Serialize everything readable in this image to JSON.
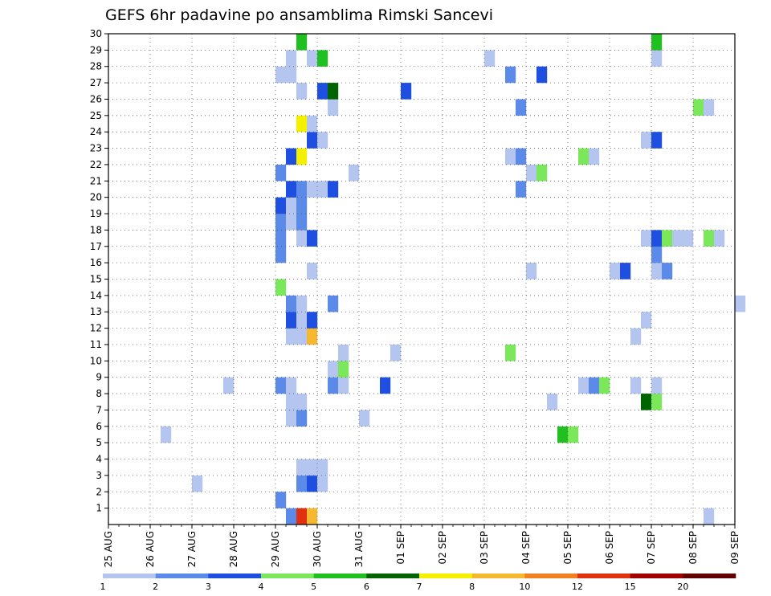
{
  "chart_data": {
    "type": "heatmap",
    "title": "GEFS 6hr padavine po ansamblima Rimski Sancevi",
    "xlabel": "",
    "ylabel": "",
    "x_range": [
      "2025-08-25 00Z",
      "2025-09-09 00Z"
    ],
    "x_tick_labels": [
      "25 AUG",
      "26 AUG",
      "27 AUG",
      "28 AUG",
      "29 AUG",
      "30 AUG",
      "31 AUG",
      "01 SEP",
      "02 SEP",
      "03 SEP",
      "04 SEP",
      "05 SEP",
      "06 SEP",
      "07 SEP",
      "08 SEP",
      "09 SEP"
    ],
    "y_range": [
      0,
      30
    ],
    "y_tick_labels": [
      1,
      2,
      3,
      4,
      5,
      6,
      7,
      8,
      9,
      10,
      11,
      12,
      13,
      14,
      15,
      16,
      17,
      18,
      19,
      20,
      21,
      22,
      23,
      24,
      25,
      26,
      27,
      28,
      29,
      30
    ],
    "grid": true,
    "colorbar": {
      "levels": [
        1,
        2,
        3,
        4,
        5,
        6,
        7,
        8,
        10,
        12,
        15,
        20
      ],
      "tick_labels": [
        "1",
        "2",
        "3",
        "4",
        "5",
        "6",
        "7",
        "8",
        "10",
        "12",
        "15",
        "20"
      ],
      "colors": [
        "#b4c6f0",
        "#5b8ae8",
        "#1f4fe0",
        "#7ae85a",
        "#20c020",
        "#006400",
        "#f5f000",
        "#f5b830",
        "#f08020",
        "#e03010",
        "#a00000",
        "#600000"
      ]
    },
    "cells": [
      {
        "x": "29 AUG 06Z",
        "member": 0,
        "color": "#5b8ae8"
      },
      {
        "x": "29 AUG 12Z",
        "member": 0,
        "color": "#e03010"
      },
      {
        "x": "29 AUG 18Z",
        "member": 0,
        "color": "#f5b830"
      },
      {
        "x": "08 SEP 06Z",
        "member": 0,
        "color": "#b4c6f0"
      },
      {
        "x": "29 AUG 00Z",
        "member": 1,
        "color": "#5b8ae8"
      },
      {
        "x": "27 AUG 00Z",
        "member": 2,
        "color": "#b4c6f0"
      },
      {
        "x": "29 AUG 12Z",
        "member": 2,
        "color": "#5b8ae8"
      },
      {
        "x": "29 AUG 18Z",
        "member": 2,
        "color": "#1f4fe0"
      },
      {
        "x": "30 AUG 00Z",
        "member": 2,
        "color": "#b4c6f0"
      },
      {
        "x": "29 AUG 12Z",
        "member": 3,
        "color": "#b4c6f0"
      },
      {
        "x": "29 AUG 18Z",
        "member": 3,
        "color": "#b4c6f0"
      },
      {
        "x": "30 AUG 00Z",
        "member": 3,
        "color": "#b4c6f0"
      },
      {
        "x": "26 AUG 06Z",
        "member": 5,
        "color": "#b4c6f0"
      },
      {
        "x": "04 SEP 18Z",
        "member": 5,
        "color": "#20c020"
      },
      {
        "x": "05 SEP 00Z",
        "member": 5,
        "color": "#7ae85a"
      },
      {
        "x": "29 AUG 06Z",
        "member": 6,
        "color": "#b4c6f0"
      },
      {
        "x": "29 AUG 12Z",
        "member": 6,
        "color": "#5b8ae8"
      },
      {
        "x": "31 AUG 00Z",
        "member": 6,
        "color": "#b4c6f0"
      },
      {
        "x": "29 AUG 06Z",
        "member": 7,
        "color": "#b4c6f0"
      },
      {
        "x": "29 AUG 12Z",
        "member": 7,
        "color": "#b4c6f0"
      },
      {
        "x": "04 SEP 12Z",
        "member": 7,
        "color": "#b4c6f0"
      },
      {
        "x": "06 SEP 18Z",
        "member": 7,
        "color": "#006400"
      },
      {
        "x": "07 SEP 00Z",
        "member": 7,
        "color": "#7ae85a"
      },
      {
        "x": "27 AUG 18Z",
        "member": 8,
        "color": "#b4c6f0"
      },
      {
        "x": "29 AUG 00Z",
        "member": 8,
        "color": "#5b8ae8"
      },
      {
        "x": "29 AUG 06Z",
        "member": 8,
        "color": "#b4c6f0"
      },
      {
        "x": "30 AUG 06Z",
        "member": 8,
        "color": "#5b8ae8"
      },
      {
        "x": "30 AUG 12Z",
        "member": 8,
        "color": "#b4c6f0"
      },
      {
        "x": "31 AUG 12Z",
        "member": 8,
        "color": "#1f4fe0"
      },
      {
        "x": "05 SEP 06Z",
        "member": 8,
        "color": "#b4c6f0"
      },
      {
        "x": "05 SEP 12Z",
        "member": 8,
        "color": "#5b8ae8"
      },
      {
        "x": "05 SEP 18Z",
        "member": 8,
        "color": "#7ae85a"
      },
      {
        "x": "06 SEP 12Z",
        "member": 8,
        "color": "#b4c6f0"
      },
      {
        "x": "07 SEP 00Z",
        "member": 8,
        "color": "#b4c6f0"
      },
      {
        "x": "30 AUG 06Z",
        "member": 9,
        "color": "#b4c6f0"
      },
      {
        "x": "30 AUG 12Z",
        "member": 9,
        "color": "#7ae85a"
      },
      {
        "x": "30 AUG 12Z",
        "member": 10,
        "color": "#b4c6f0"
      },
      {
        "x": "31 AUG 18Z",
        "member": 10,
        "color": "#b4c6f0"
      },
      {
        "x": "03 SEP 12Z",
        "member": 10,
        "color": "#7ae85a"
      },
      {
        "x": "29 AUG 06Z",
        "member": 11,
        "color": "#b4c6f0"
      },
      {
        "x": "29 AUG 12Z",
        "member": 11,
        "color": "#b4c6f0"
      },
      {
        "x": "29 AUG 18Z",
        "member": 11,
        "color": "#f5b830"
      },
      {
        "x": "06 SEP 12Z",
        "member": 11,
        "color": "#b4c6f0"
      },
      {
        "x": "29 AUG 06Z",
        "member": 12,
        "color": "#1f4fe0"
      },
      {
        "x": "29 AUG 12Z",
        "member": 12,
        "color": "#b4c6f0"
      },
      {
        "x": "29 AUG 18Z",
        "member": 12,
        "color": "#1f4fe0"
      },
      {
        "x": "06 SEP 18Z",
        "member": 12,
        "color": "#b4c6f0"
      },
      {
        "x": "29 AUG 06Z",
        "member": 13,
        "color": "#5b8ae8"
      },
      {
        "x": "29 AUG 12Z",
        "member": 13,
        "color": "#b4c6f0"
      },
      {
        "x": "30 AUG 06Z",
        "member": 13,
        "color": "#5b8ae8"
      },
      {
        "x": "09 SEP 00Z",
        "member": 13,
        "color": "#b4c6f0"
      },
      {
        "x": "29 AUG 00Z",
        "member": 14,
        "color": "#7ae85a"
      },
      {
        "x": "29 AUG 18Z",
        "member": 15,
        "color": "#b4c6f0"
      },
      {
        "x": "04 SEP 00Z",
        "member": 15,
        "color": "#b4c6f0"
      },
      {
        "x": "06 SEP 00Z",
        "member": 15,
        "color": "#b4c6f0"
      },
      {
        "x": "06 SEP 06Z",
        "member": 15,
        "color": "#1f4fe0"
      },
      {
        "x": "07 SEP 00Z",
        "member": 15,
        "color": "#b4c6f0"
      },
      {
        "x": "07 SEP 06Z",
        "member": 15,
        "color": "#5b8ae8"
      },
      {
        "x": "29 AUG 00Z",
        "member": 16,
        "color": "#5b8ae8"
      },
      {
        "x": "07 SEP 00Z",
        "member": 16,
        "color": "#5b8ae8"
      },
      {
        "x": "29 AUG 00Z",
        "member": 17,
        "color": "#5b8ae8"
      },
      {
        "x": "29 AUG 12Z",
        "member": 17,
        "color": "#b4c6f0"
      },
      {
        "x": "29 AUG 18Z",
        "member": 17,
        "color": "#1f4fe0"
      },
      {
        "x": "06 SEP 18Z",
        "member": 17,
        "color": "#b4c6f0"
      },
      {
        "x": "07 SEP 00Z",
        "member": 17,
        "color": "#1f4fe0"
      },
      {
        "x": "07 SEP 06Z",
        "member": 17,
        "color": "#7ae85a"
      },
      {
        "x": "07 SEP 12Z",
        "member": 17,
        "color": "#b4c6f0"
      },
      {
        "x": "07 SEP 18Z",
        "member": 17,
        "color": "#b4c6f0"
      },
      {
        "x": "08 SEP 06Z",
        "member": 17,
        "color": "#7ae85a"
      },
      {
        "x": "08 SEP 12Z",
        "member": 17,
        "color": "#b4c6f0"
      },
      {
        "x": "29 AUG 00Z",
        "member": 18,
        "color": "#5b8ae8"
      },
      {
        "x": "29 AUG 06Z",
        "member": 18,
        "color": "#b4c6f0"
      },
      {
        "x": "29 AUG 12Z",
        "member": 18,
        "color": "#5b8ae8"
      },
      {
        "x": "29 AUG 00Z",
        "member": 19,
        "color": "#1f4fe0"
      },
      {
        "x": "29 AUG 06Z",
        "member": 19,
        "color": "#b4c6f0"
      },
      {
        "x": "29 AUG 12Z",
        "member": 19,
        "color": "#5b8ae8"
      },
      {
        "x": "29 AUG 06Z",
        "member": 20,
        "color": "#1f4fe0"
      },
      {
        "x": "29 AUG 12Z",
        "member": 20,
        "color": "#5b8ae8"
      },
      {
        "x": "29 AUG 18Z",
        "member": 20,
        "color": "#b4c6f0"
      },
      {
        "x": "30 AUG 00Z",
        "member": 20,
        "color": "#b4c6f0"
      },
      {
        "x": "30 AUG 06Z",
        "member": 20,
        "color": "#1f4fe0"
      },
      {
        "x": "03 SEP 18Z",
        "member": 20,
        "color": "#5b8ae8"
      },
      {
        "x": "29 AUG 00Z",
        "member": 21,
        "color": "#5b8ae8"
      },
      {
        "x": "30 AUG 18Z",
        "member": 21,
        "color": "#b4c6f0"
      },
      {
        "x": "04 SEP 00Z",
        "member": 21,
        "color": "#b4c6f0"
      },
      {
        "x": "04 SEP 06Z",
        "member": 21,
        "color": "#7ae85a"
      },
      {
        "x": "29 AUG 06Z",
        "member": 22,
        "color": "#1f4fe0"
      },
      {
        "x": "29 AUG 12Z",
        "member": 22,
        "color": "#f5f000"
      },
      {
        "x": "03 SEP 12Z",
        "member": 22,
        "color": "#b4c6f0"
      },
      {
        "x": "03 SEP 18Z",
        "member": 22,
        "color": "#5b8ae8"
      },
      {
        "x": "05 SEP 06Z",
        "member": 22,
        "color": "#7ae85a"
      },
      {
        "x": "05 SEP 12Z",
        "member": 22,
        "color": "#b4c6f0"
      },
      {
        "x": "29 AUG 18Z",
        "member": 23,
        "color": "#1f4fe0"
      },
      {
        "x": "30 AUG 00Z",
        "member": 23,
        "color": "#b4c6f0"
      },
      {
        "x": "06 SEP 18Z",
        "member": 23,
        "color": "#b4c6f0"
      },
      {
        "x": "07 SEP 00Z",
        "member": 23,
        "color": "#1f4fe0"
      },
      {
        "x": "29 AUG 12Z",
        "member": 24,
        "color": "#f5f000"
      },
      {
        "x": "29 AUG 18Z",
        "member": 24,
        "color": "#b4c6f0"
      },
      {
        "x": "30 AUG 06Z",
        "member": 25,
        "color": "#b4c6f0"
      },
      {
        "x": "03 SEP 18Z",
        "member": 25,
        "color": "#5b8ae8"
      },
      {
        "x": "08 SEP 00Z",
        "member": 25,
        "color": "#7ae85a"
      },
      {
        "x": "08 SEP 06Z",
        "member": 25,
        "color": "#b4c6f0"
      },
      {
        "x": "29 AUG 12Z",
        "member": 26,
        "color": "#b4c6f0"
      },
      {
        "x": "30 AUG 00Z",
        "member": 26,
        "color": "#1f4fe0"
      },
      {
        "x": "30 AUG 06Z",
        "member": 26,
        "color": "#006400"
      },
      {
        "x": "01 SEP 00Z",
        "member": 26,
        "color": "#1f4fe0"
      },
      {
        "x": "29 AUG 00Z",
        "member": 27,
        "color": "#b4c6f0"
      },
      {
        "x": "29 AUG 06Z",
        "member": 27,
        "color": "#b4c6f0"
      },
      {
        "x": "03 SEP 12Z",
        "member": 27,
        "color": "#5b8ae8"
      },
      {
        "x": "04 SEP 06Z",
        "member": 27,
        "color": "#1f4fe0"
      },
      {
        "x": "29 AUG 06Z",
        "member": 28,
        "color": "#b4c6f0"
      },
      {
        "x": "29 AUG 18Z",
        "member": 28,
        "color": "#b4c6f0"
      },
      {
        "x": "30 AUG 00Z",
        "member": 28,
        "color": "#20c020"
      },
      {
        "x": "03 SEP 00Z",
        "member": 28,
        "color": "#b4c6f0"
      },
      {
        "x": "07 SEP 00Z",
        "member": 28,
        "color": "#b4c6f0"
      },
      {
        "x": "29 AUG 12Z",
        "member": 29,
        "color": "#20c020"
      },
      {
        "x": "07 SEP 00Z",
        "member": 29,
        "color": "#20c020"
      }
    ]
  }
}
